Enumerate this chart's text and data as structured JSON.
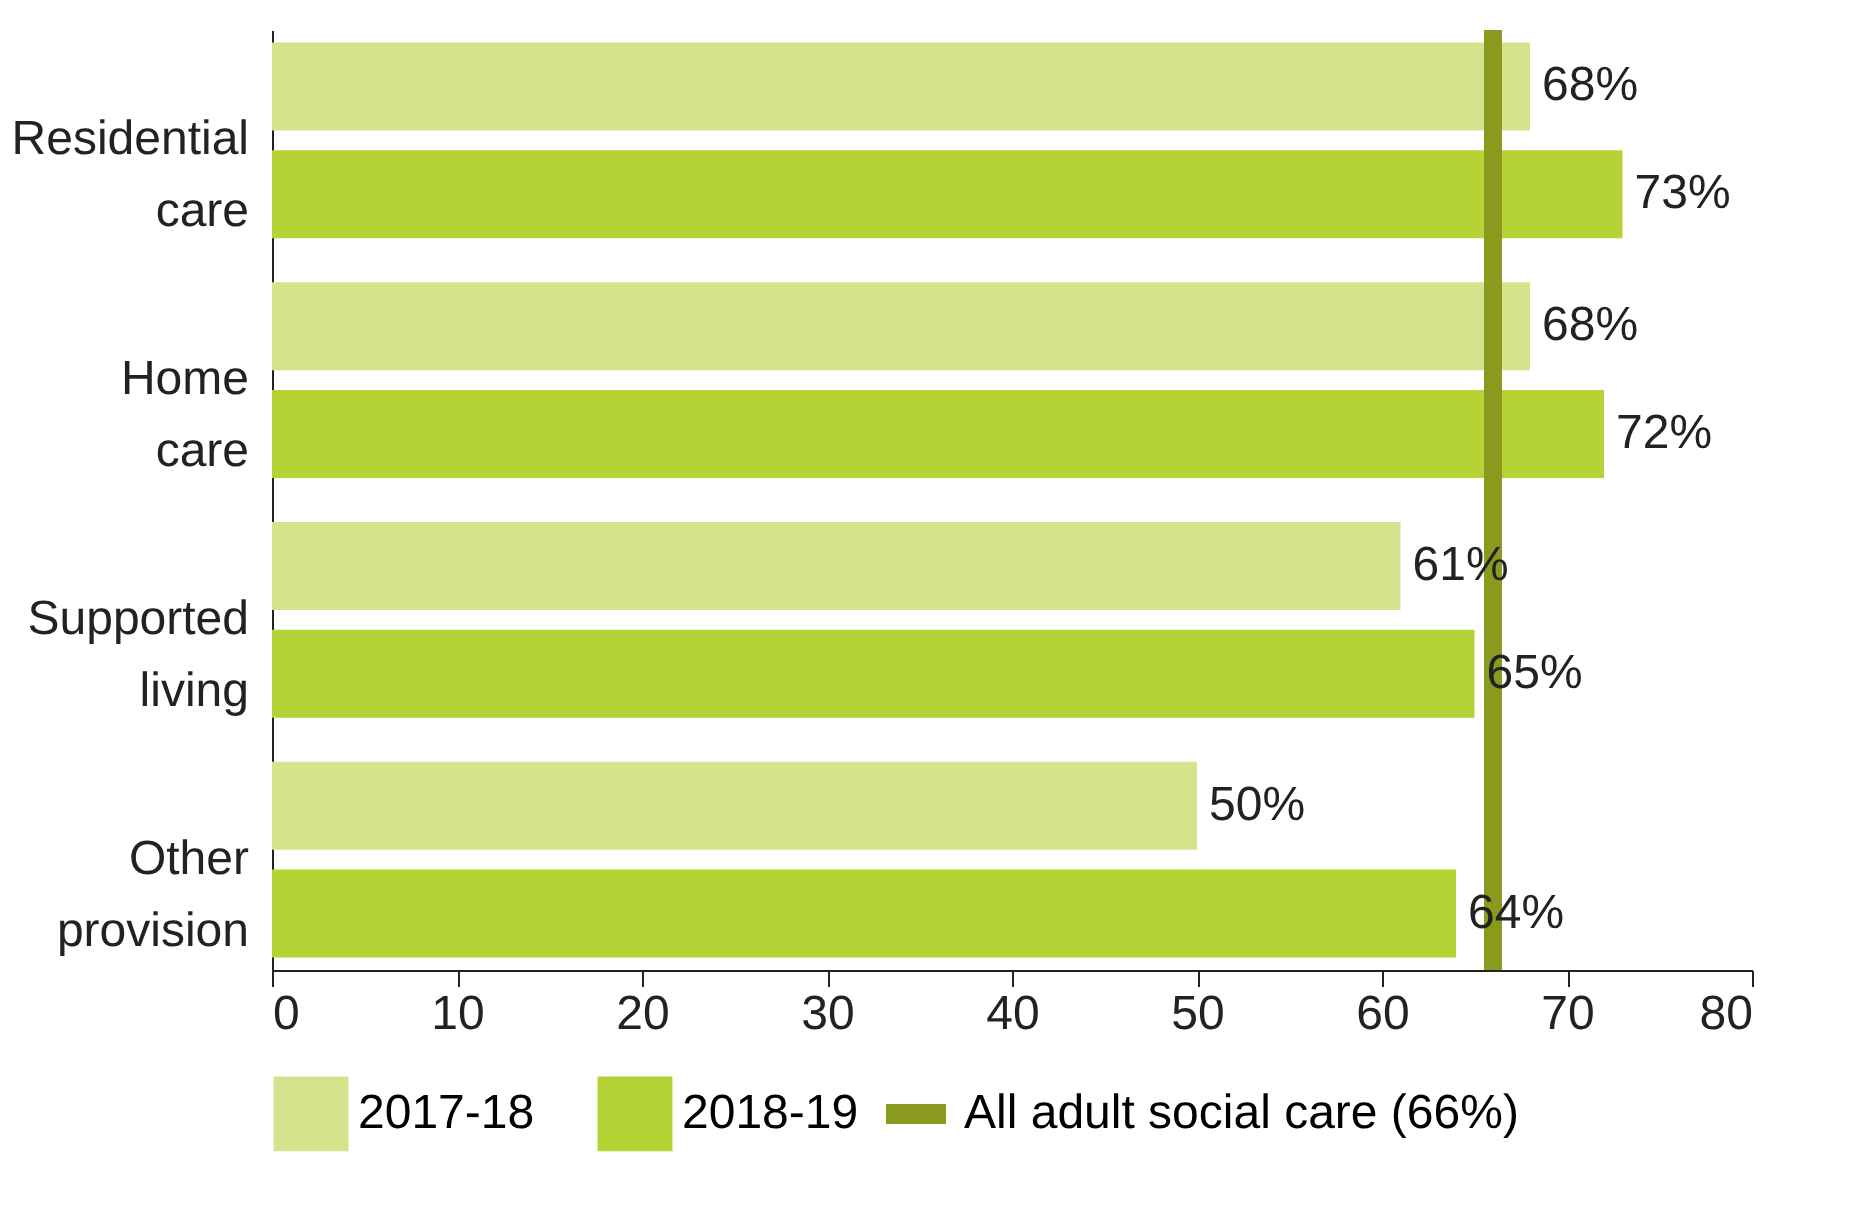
{
  "chart_data": {
    "type": "bar",
    "orientation": "horizontal",
    "categories": [
      "Residential care",
      "Home care",
      "Supported living",
      "Other provision"
    ],
    "series": [
      {
        "name": "2017-18",
        "color": "#d4e38c",
        "values": [
          68,
          68,
          61,
          50
        ],
        "value_labels": [
          "68%",
          "68%",
          "61%",
          "50%"
        ]
      },
      {
        "name": "2018-19",
        "color": "#b5d334",
        "values": [
          73,
          72,
          65,
          64
        ],
        "value_labels": [
          "73%",
          "72%",
          "65%",
          "64%"
        ]
      }
    ],
    "xlim": [
      0,
      80
    ],
    "xticks": [
      0,
      10,
      20,
      30,
      40,
      50,
      60,
      70,
      80
    ],
    "grid": false,
    "legend": "bottom",
    "ref_lines": [
      {
        "axis": "x",
        "value": 66,
        "label": "All adult social care (66%)",
        "color": "#8a9a1e"
      }
    ]
  }
}
